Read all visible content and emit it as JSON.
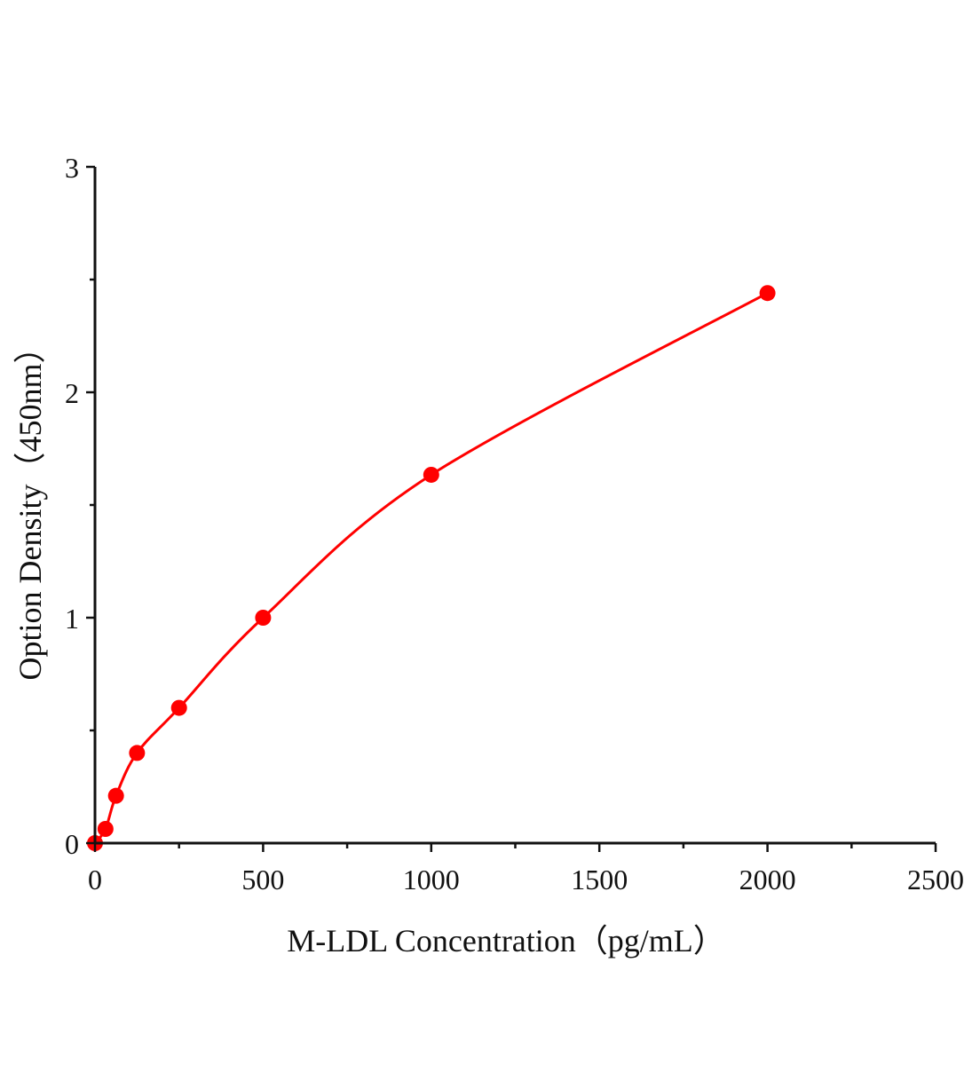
{
  "chart_data": {
    "type": "scatter",
    "title": "",
    "xlabel": "M-LDL Concentration（pg/mL）",
    "ylabel": "Option Density（450nm）",
    "xlim": [
      0,
      2500
    ],
    "ylim": [
      0,
      3
    ],
    "xticks": [
      0,
      500,
      1000,
      1500,
      2000,
      2500
    ],
    "yticks": [
      0,
      1,
      2,
      3
    ],
    "x_minor_step": 250,
    "y_minor_step": 0.5,
    "grid": false,
    "series": [
      {
        "x": [
          0,
          31.25,
          62.5,
          125,
          250,
          500,
          1000,
          2000
        ],
        "y": [
          0,
          0.063,
          0.21,
          0.4,
          0.6,
          1.0,
          1.634,
          2.44
        ],
        "color": "#ff0000",
        "marker": "circle",
        "fit_line": true
      }
    ]
  }
}
